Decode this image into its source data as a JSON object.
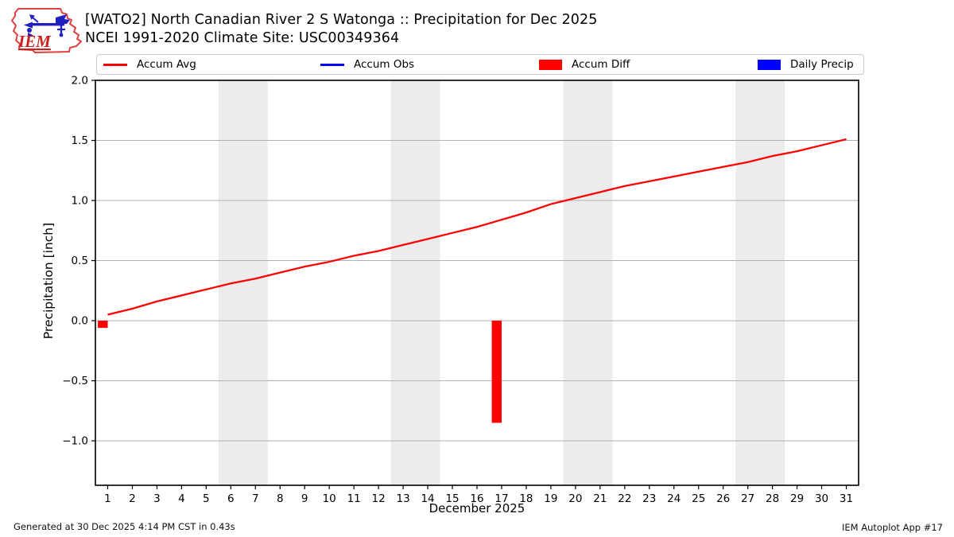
{
  "header": {
    "logo_text": "IEM"
  },
  "legend": {
    "items": [
      {
        "label": "Accum Avg",
        "swatch": "line",
        "color": "#ff0000"
      },
      {
        "label": "Accum Obs",
        "swatch": "line",
        "color": "#0000ff"
      },
      {
        "label": "Accum Diff",
        "swatch": "patch",
        "color": "#ff0000"
      },
      {
        "label": "Daily Precip",
        "swatch": "patch",
        "color": "#0000ff"
      }
    ]
  },
  "chart_data": {
    "type": "line+bar",
    "title": "[WATO2] North Canadian River 2 S Watonga :: Precipitation for Dec 2025",
    "subtitle": "NCEI 1991-2020 Climate Site: USC00349364",
    "xlabel": "December 2025",
    "ylabel": "Precipitation [inch]",
    "xlim": [
      0.5,
      31.5
    ],
    "ylim": [
      -1.37,
      2.0
    ],
    "xticks": [
      1,
      2,
      3,
      4,
      5,
      6,
      7,
      8,
      9,
      10,
      11,
      12,
      13,
      14,
      15,
      16,
      17,
      18,
      19,
      20,
      21,
      22,
      23,
      24,
      25,
      26,
      27,
      28,
      29,
      30,
      31
    ],
    "yticks": [
      2.0,
      1.5,
      1.0,
      0.5,
      0.0,
      -0.5,
      -1.0
    ],
    "grid": true,
    "legend_position": "top",
    "weekend_bands": [
      [
        5.5,
        7.5
      ],
      [
        12.5,
        14.5
      ],
      [
        19.5,
        21.5
      ],
      [
        26.5,
        28.5
      ]
    ],
    "style": {
      "band_color": "#ececec",
      "grid_color": "#b0b0b0",
      "spine_color": "#000000",
      "avg_color": "#ff0000",
      "obs_color": "#0000ff"
    },
    "series": [
      {
        "name": "Accum Avg",
        "type": "line",
        "color": "#ff0000",
        "x": [
          1,
          2,
          3,
          4,
          5,
          6,
          7,
          8,
          9,
          10,
          11,
          12,
          13,
          14,
          15,
          16,
          17,
          18,
          19,
          20,
          21,
          22,
          23,
          24,
          25,
          26,
          27,
          28,
          29,
          30,
          31
        ],
        "values": [
          0.05,
          0.1,
          0.16,
          0.21,
          0.26,
          0.31,
          0.35,
          0.4,
          0.45,
          0.49,
          0.54,
          0.58,
          0.63,
          0.68,
          0.73,
          0.78,
          0.84,
          0.9,
          0.97,
          1.02,
          1.07,
          1.12,
          1.16,
          1.2,
          1.24,
          1.28,
          1.32,
          1.37,
          1.41,
          1.46,
          1.51
        ]
      },
      {
        "name": "Accum Obs",
        "type": "line",
        "color": "#0000ff",
        "x": [],
        "values": []
      },
      {
        "name": "Accum Diff",
        "type": "bar",
        "color": "#ff0000",
        "bar_offset": -0.2,
        "bar_width": 0.4,
        "points": [
          {
            "day": 1,
            "value": -0.06
          },
          {
            "day": 17,
            "value": -0.85
          }
        ]
      },
      {
        "name": "Daily Precip",
        "type": "bar",
        "color": "#0000ff",
        "bar_offset": 0.2,
        "bar_width": 0.4,
        "points": []
      }
    ]
  },
  "footer": {
    "left": "Generated at 30 Dec 2025 4:14 PM CST in 0.43s",
    "right": "IEM Autoplot App #17"
  }
}
